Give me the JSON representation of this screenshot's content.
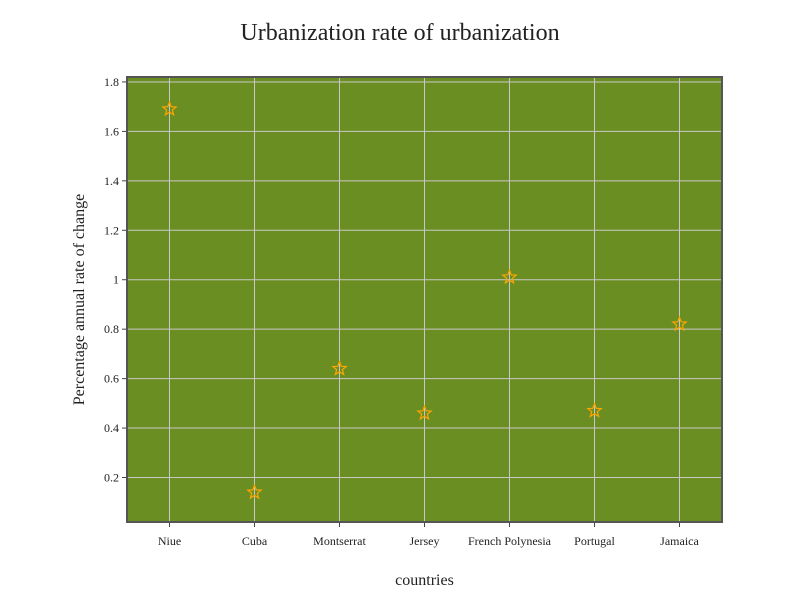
{
  "chart_data": {
    "type": "scatter",
    "title": "Urbanization rate of urbanization",
    "xlabel": "countries",
    "ylabel": "Percentage annual rate of change",
    "categories": [
      "Niue",
      "Cuba",
      "Montserrat",
      "Jersey",
      "French Polynesia",
      "Portugal",
      "Jamaica"
    ],
    "series": [
      {
        "values": [
          1.69,
          0.14,
          0.64,
          0.46,
          1.01,
          0.47,
          0.82
        ]
      }
    ],
    "ylim": [
      0.02,
      1.82
    ],
    "yticks": [
      0.2,
      0.4,
      0.6,
      0.8,
      1,
      1.2,
      1.4,
      1.6,
      1.8
    ],
    "grid": true,
    "marker": "star",
    "colors": {
      "plot_background": "#6b8e23",
      "marker": "#ffa500",
      "grid": "#c8c8c8",
      "frame": "#555555"
    }
  }
}
